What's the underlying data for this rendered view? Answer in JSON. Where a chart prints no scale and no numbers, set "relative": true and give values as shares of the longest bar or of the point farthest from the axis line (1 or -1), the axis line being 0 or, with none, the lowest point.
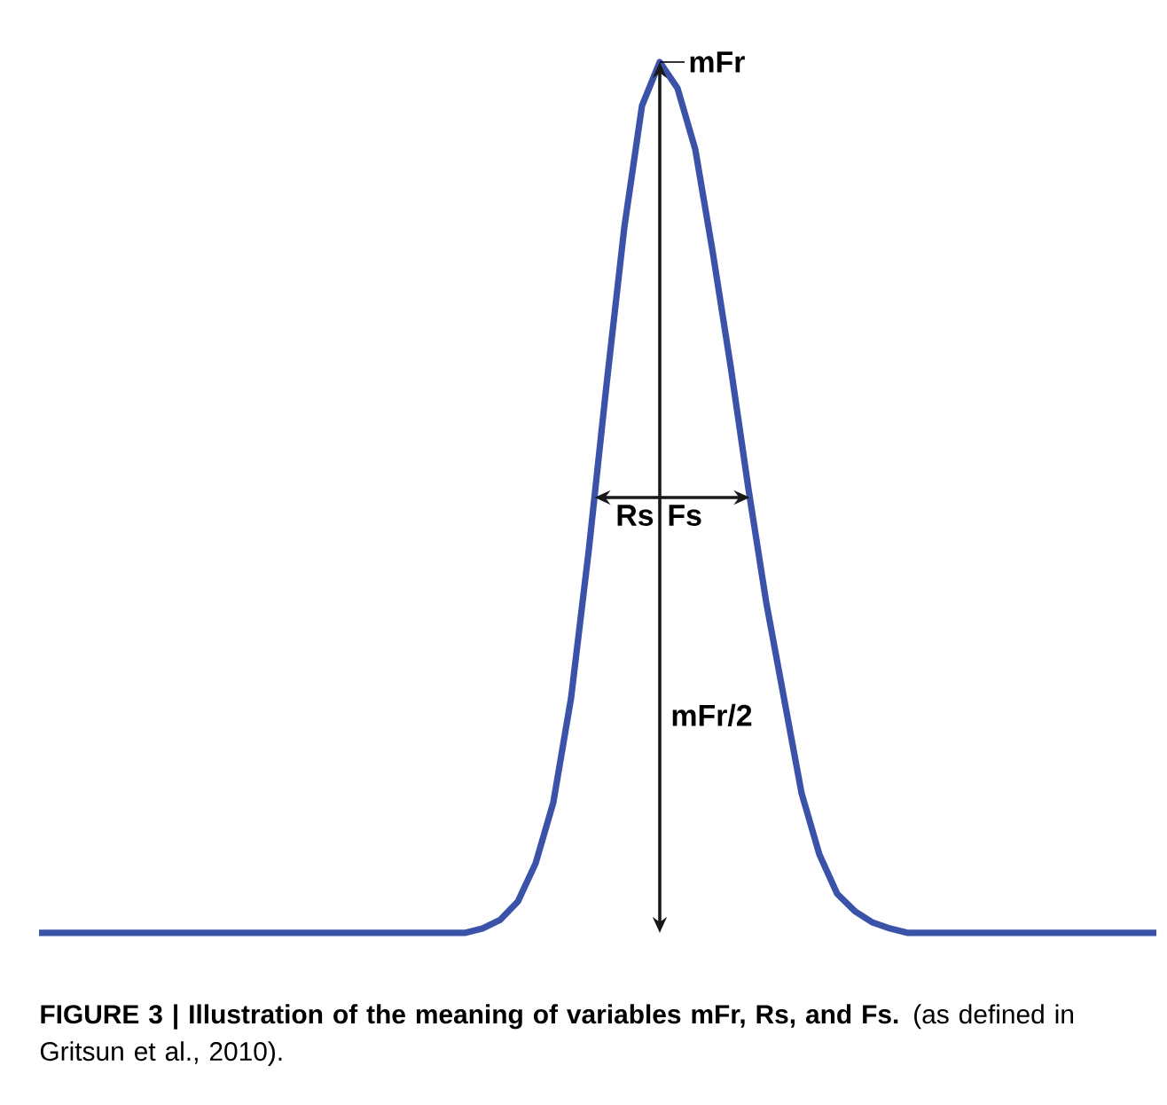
{
  "chart_data": {
    "type": "line",
    "relative": true,
    "categories": [
      null,
      null,
      null,
      null,
      null,
      null,
      null,
      null,
      null,
      null,
      null,
      null,
      null,
      null,
      null,
      null,
      null,
      null,
      null,
      null,
      null,
      null,
      null,
      null,
      null,
      null,
      null,
      null,
      null,
      null,
      null,
      null,
      null,
      null,
      null,
      null,
      null,
      null,
      null,
      null,
      null,
      null,
      null,
      null,
      null,
      null,
      null,
      null,
      null,
      null,
      null,
      null,
      null,
      null,
      null,
      null,
      null,
      null,
      null,
      null,
      null,
      null,
      null,
      null
    ],
    "series": [
      {
        "color": "#3a52a8",
        "values": [
          0,
          0,
          0,
          0,
          0,
          0,
          0,
          0,
          0,
          0,
          0,
          0,
          0,
          0,
          0,
          0,
          0,
          0,
          0,
          0,
          0,
          0,
          0,
          0,
          0,
          0.005,
          0.015,
          0.036,
          0.08,
          0.15,
          0.27,
          0.44,
          0.63,
          0.81,
          0.95,
          1,
          0.97,
          0.9,
          0.78,
          0.65,
          0.51,
          0.38,
          0.27,
          0.16,
          0.09,
          0.045,
          0.025,
          0.012,
          0.005,
          0,
          0,
          0,
          0,
          0,
          0,
          0,
          0,
          0,
          0,
          0,
          0,
          0,
          0,
          0
        ]
      }
    ],
    "annotations": [
      "mFr",
      "Rs",
      "Fs",
      "mFr/2",
      "**FIGURE 3 | Illustration of the meaning of variables mFr, Rs, and Fs.** (as defined in Gritsun et al., 2010)."
    ]
  }
}
